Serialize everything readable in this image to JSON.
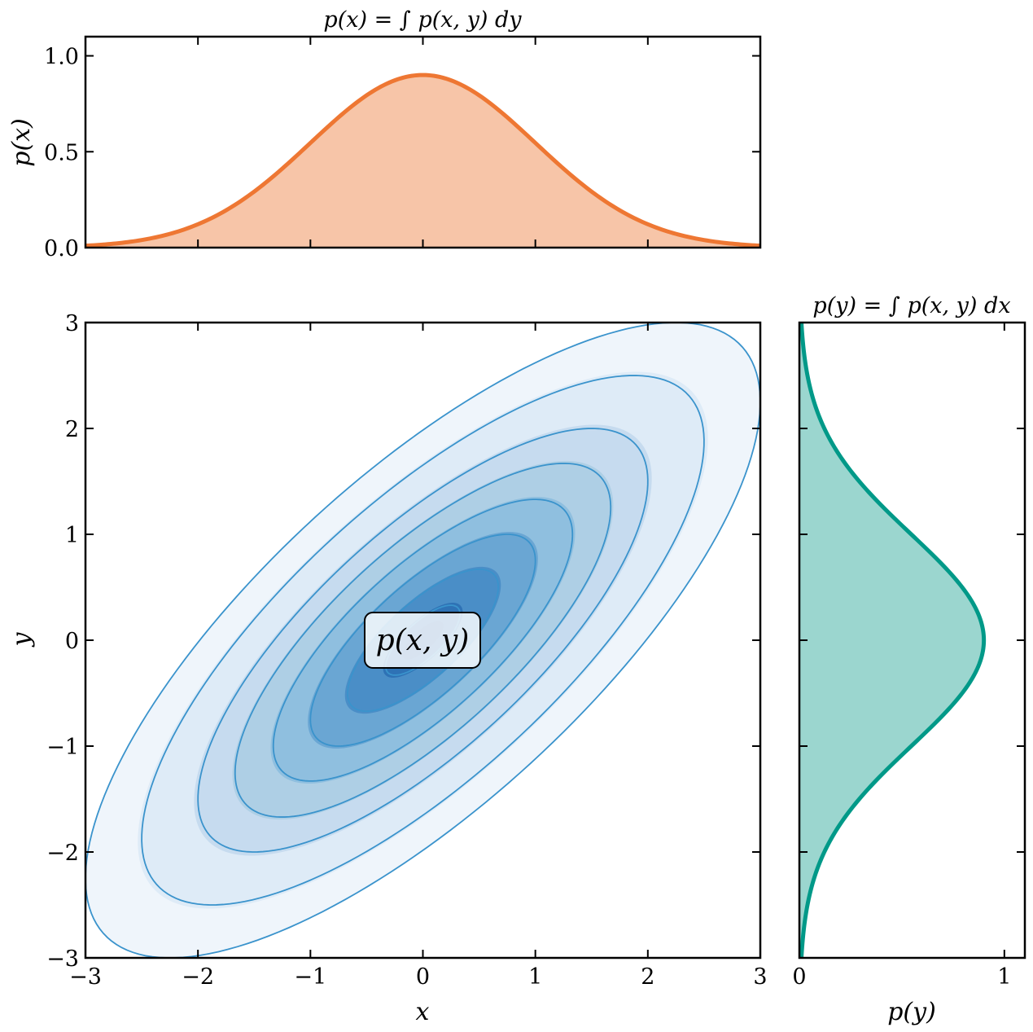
{
  "chart_data": [
    {
      "panel": "joint",
      "type": "contour",
      "title": "",
      "xlabel": "x",
      "ylabel": "y",
      "xlim": [
        -3,
        3
      ],
      "ylim": [
        -3,
        3
      ],
      "xticks": [
        -3,
        -2,
        -1,
        0,
        1,
        2,
        3
      ],
      "yticks": [
        -3,
        -2,
        -1,
        0,
        1,
        2,
        3
      ],
      "xtick_labels": [
        "−3",
        "−2",
        "−1",
        "0",
        "1",
        "2",
        "3"
      ],
      "ytick_labels": [
        "−3",
        "−2",
        "−1",
        "0",
        "1",
        "2",
        "3"
      ],
      "distribution": {
        "mean": [
          0,
          0
        ],
        "sigma_x": 1,
        "sigma_y": 1,
        "rho": 0.75
      },
      "contour_levels_mahalanobis": [
        3.0,
        2.5,
        2.0,
        1.67,
        1.33,
        1.0,
        0.67,
        0.33
      ],
      "fill_colors": [
        "#eff5fb",
        "#deebf7",
        "#c6dbef",
        "#aecfe5",
        "#8fbfdf",
        "#6aa6d3",
        "#4a8ec7",
        "#2e72b5",
        "#2b66ab"
      ],
      "line_color": "#3a93cc",
      "annotation": "p(x, y)"
    },
    {
      "panel": "marginal_x",
      "type": "area",
      "title": "p(x) = ∫ p(x, y) dy",
      "xlabel": "",
      "ylabel": "p(x)",
      "xlim": [
        -3,
        3
      ],
      "ylim": [
        0,
        1.1
      ],
      "yticks": [
        0.0,
        0.5,
        1.0
      ],
      "ytick_labels": [
        "0.0",
        "0.5",
        "1.0"
      ],
      "x": [
        -3,
        -2.5,
        -2,
        -1.5,
        -1,
        -0.5,
        0,
        0.5,
        1,
        1.5,
        2,
        2.5,
        3
      ],
      "values": [
        0.01,
        0.04,
        0.12,
        0.29,
        0.55,
        0.79,
        0.9,
        0.79,
        0.55,
        0.29,
        0.12,
        0.04,
        0.01
      ],
      "line_color": "#ee7733",
      "fill_color": "#f7c5a8"
    },
    {
      "panel": "marginal_y",
      "type": "area",
      "title": "p(y) = ∫ p(x, y) dx",
      "xlabel": "p(y)",
      "ylabel": "",
      "xlim": [
        0,
        1.1
      ],
      "ylim": [
        -3,
        3
      ],
      "xticks": [
        0,
        1
      ],
      "xtick_labels": [
        "0",
        "1"
      ],
      "y": [
        -3,
        -2.5,
        -2,
        -1.5,
        -1,
        -0.5,
        0,
        0.5,
        1,
        1.5,
        2,
        2.5,
        3
      ],
      "values": [
        0.01,
        0.04,
        0.12,
        0.29,
        0.55,
        0.79,
        0.9,
        0.79,
        0.55,
        0.29,
        0.12,
        0.04,
        0.01
      ],
      "line_color": "#009988",
      "fill_color": "#9bd6cf"
    }
  ]
}
